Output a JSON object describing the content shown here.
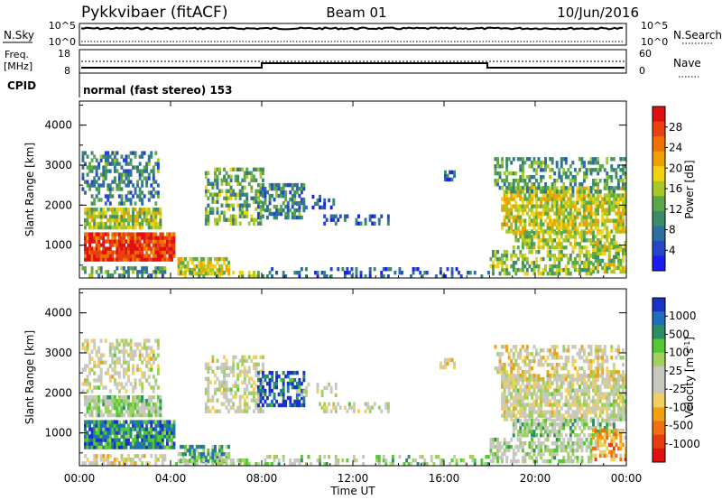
{
  "header": {
    "title": "Pykkvibaer (fitACF)",
    "beam": "Beam 01",
    "date": "10/Jun/2016"
  },
  "sky_panel": {
    "left_label": "N.Sky",
    "right_label": "N.Search",
    "left_ticks": [
      "10^5",
      "10^0"
    ],
    "right_ticks": [
      "10^5",
      "10^0"
    ]
  },
  "freq_panel": {
    "label_line1": "Freq.",
    "label_line2": "[MHz]",
    "left_ticks": [
      "18",
      "8"
    ],
    "right_label": "Nave",
    "right_ticks": [
      "60",
      "0"
    ]
  },
  "cpid_panel": {
    "label": "CPID",
    "text": "normal (fast stereo) 153"
  },
  "chart_data": [
    {
      "type": "heatmap",
      "name": "power",
      "xlabel": "",
      "ylabel": "Slant Range [km]",
      "x_ticks": [
        "00:00",
        "04:00",
        "08:00",
        "12:00",
        "16:00",
        "20:00",
        "00:00"
      ],
      "y_ticks": [
        "1000",
        "2000",
        "3000",
        "4000"
      ],
      "ylim": [
        180,
        4600
      ],
      "xlim_hours": [
        0,
        24
      ],
      "colorbar_label": "Power [dB]",
      "colorbar_ticks": [
        "4",
        "8",
        "12",
        "16",
        "20",
        "24",
        "28"
      ],
      "colors": [
        "#1c1cf0",
        "#2546c8",
        "#2e6ea0",
        "#3c8c6a",
        "#5aa84a",
        "#a6c828",
        "#f2d214",
        "#f0a000",
        "#f07000",
        "#e84010",
        "#e01010"
      ]
    },
    {
      "type": "heatmap",
      "name": "velocity",
      "xlabel": "Time UT",
      "ylabel": "Slant Range [km]",
      "x_ticks": [
        "00:00",
        "04:00",
        "08:00",
        "12:00",
        "16:00",
        "20:00",
        "00:00"
      ],
      "y_ticks": [
        "1000",
        "2000",
        "3000",
        "4000"
      ],
      "ylim": [
        180,
        4600
      ],
      "xlim_hours": [
        0,
        24
      ],
      "colorbar_label": "Velocity [m s",
      "colorbar_label_sup": "-1",
      "colorbar_label_end": "]",
      "colorbar_ticks": [
        "1000",
        "500",
        "100",
        "25",
        "-25",
        "-100",
        "-500",
        "-1000"
      ],
      "colors": [
        "#1a32c8",
        "#1e6ebe",
        "#2c8c64",
        "#52c832",
        "#a0d060",
        "#c8c8c0",
        "#c8c8c0",
        "#f0d060",
        "#f0a010",
        "#f07010",
        "#e83c10",
        "#e01010"
      ]
    }
  ]
}
